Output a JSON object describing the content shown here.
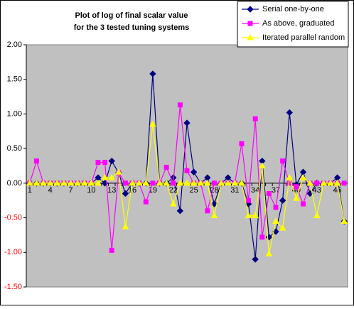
{
  "chart_data": {
    "type": "line",
    "title": [
      "Plot of log of final scalar value",
      "for the 3 tested tuning systems"
    ],
    "categories": [
      "1",
      null,
      null,
      "4",
      null,
      null,
      "7",
      null,
      null,
      "10",
      null,
      null,
      "13",
      null,
      null,
      "16",
      null,
      null,
      "19",
      null,
      null,
      "22",
      null,
      null,
      "25",
      null,
      null,
      "28",
      null,
      null,
      "31",
      null,
      null,
      "34",
      null,
      null,
      "37",
      null,
      null,
      "40",
      null,
      null,
      "43",
      null,
      null,
      "46",
      null
    ],
    "series": [
      {
        "name": "Serial one-by-one",
        "color": "#000080",
        "marker": "diamond",
        "values": [
          0,
          0,
          0,
          0,
          0,
          0,
          0,
          0,
          0,
          0,
          0.08,
          0,
          0.32,
          0.15,
          -0.15,
          0,
          0,
          0,
          1.58,
          0,
          0,
          0.08,
          -0.4,
          0.87,
          0.16,
          0,
          0.08,
          -0.3,
          0,
          0.08,
          0,
          0,
          -0.3,
          -1.1,
          0.32,
          -0.78,
          -0.7,
          -0.25,
          1.02,
          -0.02,
          0.16,
          -0.15,
          0,
          0,
          0,
          0.08,
          -0.55
        ]
      },
      {
        "name": "As above, graduated",
        "color": "#ff00ff",
        "marker": "square",
        "values": [
          0,
          0.32,
          0,
          0,
          0,
          0,
          0,
          0,
          0,
          0,
          0.3,
          0.3,
          -0.97,
          0.15,
          0,
          0,
          0,
          -0.27,
          0,
          0,
          0.23,
          0,
          1.13,
          0.18,
          0,
          0,
          -0.4,
          0,
          0,
          0,
          0,
          0.57,
          -0.25,
          0.93,
          -0.78,
          -0.15,
          -0.35,
          0.32,
          0,
          -0.05,
          -0.3,
          0,
          0,
          0,
          0,
          0,
          0
        ]
      },
      {
        "name": "Iterated parallel random",
        "color": "#ffff00",
        "marker": "triangle",
        "values": [
          0,
          0,
          0,
          0,
          0,
          0,
          0,
          0,
          0,
          0,
          0,
          0.08,
          0.08,
          0.16,
          -0.63,
          0,
          0,
          0,
          0.85,
          0,
          0,
          -0.3,
          0,
          0,
          0,
          0,
          0,
          -0.47,
          0,
          0,
          0,
          0,
          -0.47,
          -0.47,
          0.25,
          -1.02,
          -0.55,
          -0.65,
          0.08,
          -0.22,
          0.08,
          0,
          -0.47,
          0,
          0,
          0,
          -0.55
        ]
      }
    ],
    "ylim": [
      -1.5,
      2
    ],
    "yticks": [
      {
        "value": -1.5,
        "label": "-1.50"
      },
      {
        "value": -1,
        "label": "-1.00"
      },
      {
        "value": -0.5,
        "label": "-0.50"
      },
      {
        "value": 0,
        "label": "0.00"
      },
      {
        "value": 0.5,
        "label": "0.50"
      },
      {
        "value": 1,
        "label": "1.00"
      },
      {
        "value": 1.5,
        "label": "1.50"
      },
      {
        "value": 2,
        "label": "2.00"
      }
    ],
    "legend": "top-right"
  }
}
